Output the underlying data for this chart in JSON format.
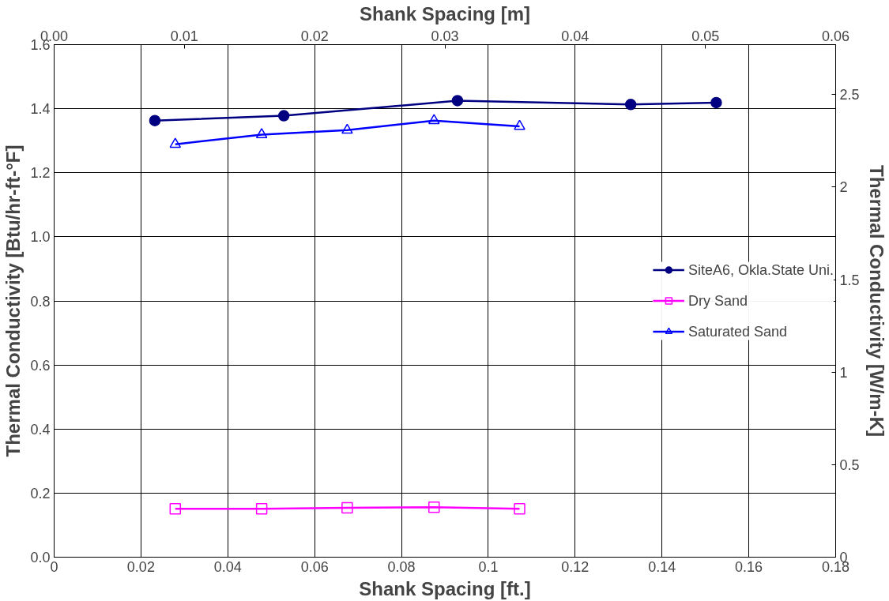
{
  "chart_data": {
    "type": "line",
    "xlabel": "Shank Spacing [ft.]",
    "ylabel": "Thermal Conductivity [Btu/hr-ft-°F]",
    "y2label": "Thermal Conductivity [W/m-K]",
    "x2label": "Shank Spacing [m]",
    "series": [
      {
        "name": "SiteA6, Okla.State Uni.",
        "color": "#000080",
        "marker": "circle",
        "x": [
          0.0232,
          0.0529,
          0.0929,
          0.1328,
          0.1525
        ],
        "values": [
          1.363,
          1.378,
          1.425,
          1.413,
          1.419
        ]
      },
      {
        "name": "Dry Sand",
        "color": "#ff00ff",
        "marker": "square",
        "x": [
          0.0279,
          0.0478,
          0.0675,
          0.0875,
          0.1072
        ],
        "values": [
          0.151,
          0.151,
          0.154,
          0.156,
          0.151
        ]
      },
      {
        "name": "Saturated Sand",
        "color": "#0000ff",
        "marker": "triangle",
        "x": [
          0.0279,
          0.0478,
          0.0675,
          0.0875,
          0.1072
        ],
        "values": [
          1.289,
          1.319,
          1.333,
          1.363,
          1.345
        ]
      }
    ],
    "xlim": [
      0,
      0.18
    ],
    "xticks": [
      0,
      0.02,
      0.04,
      0.06,
      0.08,
      0.1,
      0.12,
      0.14,
      0.16,
      0.18
    ],
    "ylim": [
      0,
      1.6
    ],
    "yticks": [
      {
        "value": 0,
        "label": "0.0"
      },
      0.2,
      0.4,
      0.6,
      0.8,
      {
        "value": 1,
        "label": "1.0"
      },
      1.2,
      1.4,
      1.6
    ],
    "x2lim": [
      0,
      0.06
    ],
    "x2ticks": [
      {
        "value": 0,
        "label": "0.00"
      },
      0.01,
      0.02,
      0.03,
      0.04,
      0.05,
      0.06
    ],
    "y2lim": [
      0,
      2.77
    ],
    "y2ticks": [
      0,
      0.5,
      1,
      1.5,
      2,
      2.5
    ],
    "grid": true,
    "legend": "right",
    "line_style": "solid"
  }
}
